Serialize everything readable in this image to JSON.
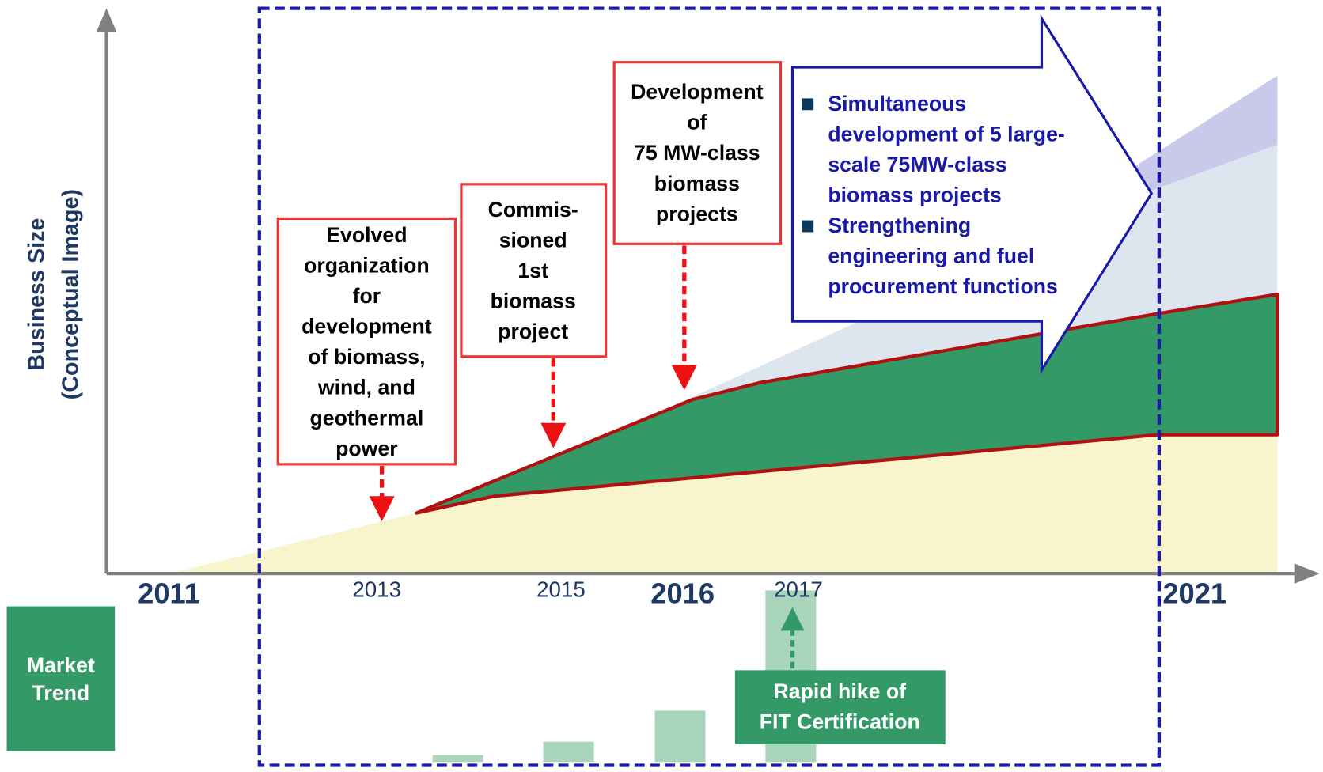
{
  "axis_label": [
    "Business Size",
    "(Conceptual Image)"
  ],
  "years": [
    "2011",
    "2013",
    "2015",
    "2016",
    "2017",
    "2021"
  ],
  "milestones": [
    {
      "lines": [
        "Evolved",
        "organization",
        "for",
        "development",
        "of biomass,",
        "wind, and",
        "geothermal",
        "power"
      ]
    },
    {
      "lines": [
        "Commis-",
        "sioned",
        "1st",
        "biomass",
        "project"
      ]
    },
    {
      "lines": [
        "Development",
        "of",
        "75 MW-class",
        "biomass",
        "projects"
      ]
    }
  ],
  "outlook": {
    "bullets": [
      {
        "lines": [
          "Simultaneous",
          "development of 5 large-",
          "scale 75MW-class",
          "biomass projects"
        ]
      },
      {
        "lines": [
          "Strengthening",
          "engineering and fuel",
          "procurement functions"
        ]
      }
    ]
  },
  "market_trend": [
    "Market",
    "Trend"
  ],
  "fit_note": [
    "Rapid hike of",
    "FIT Certification"
  ]
}
